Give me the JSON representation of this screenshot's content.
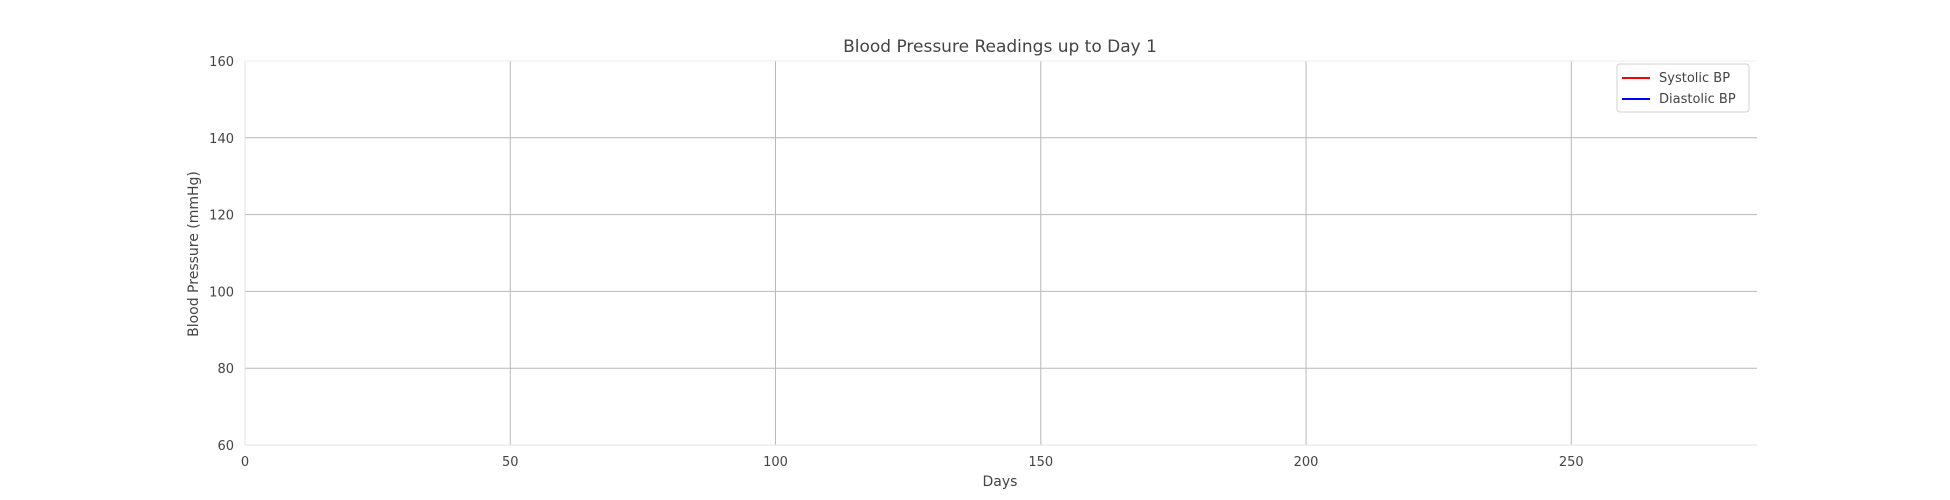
{
  "chart_data": {
    "type": "line",
    "title": "Blood Pressure Readings up to Day 1",
    "xlabel": "Days",
    "ylabel": "Blood Pressure (mmHg)",
    "xlim": [
      0,
      285
    ],
    "ylim": [
      60,
      160
    ],
    "xticks": [
      0,
      50,
      100,
      150,
      200,
      250
    ],
    "yticks": [
      60,
      80,
      100,
      120,
      140,
      160
    ],
    "grid": true,
    "legend_position": "top-right",
    "series": [
      {
        "name": "Systolic BP",
        "color": "#ff0000",
        "x": [],
        "y": []
      },
      {
        "name": "Diastolic BP",
        "color": "#0000ff",
        "x": [],
        "y": []
      }
    ]
  }
}
